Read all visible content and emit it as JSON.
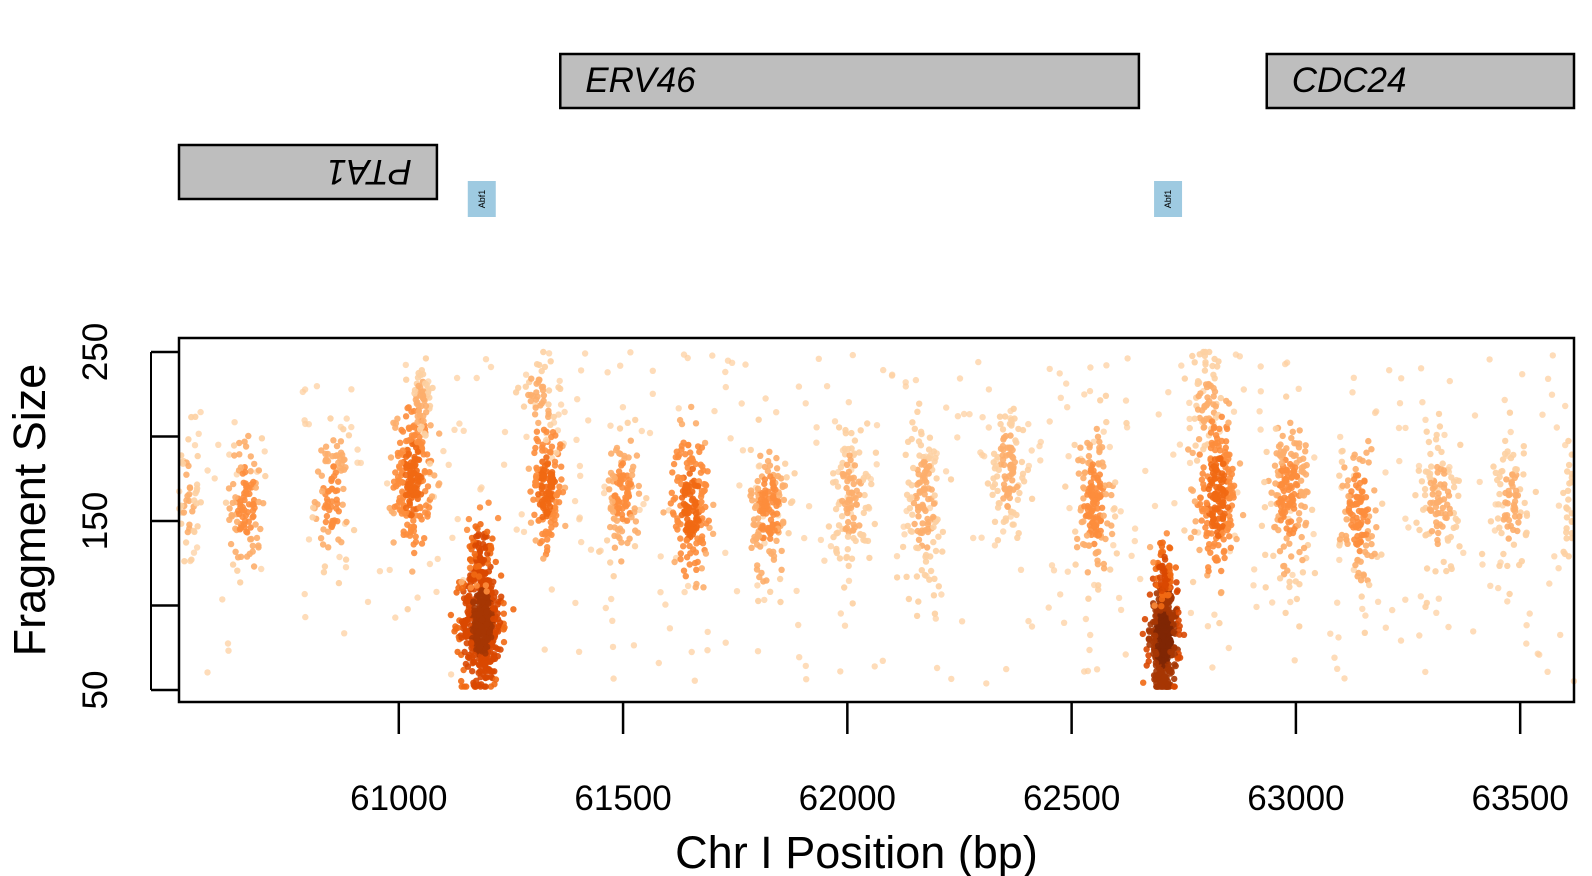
{
  "colors": {
    "gene_fill": "#bebebe",
    "motif_fill": "#9ecae1",
    "points_palette": [
      "#fdd0a2",
      "#fdae6b",
      "#fd8d3c",
      "#f16913",
      "#d94801",
      "#a63603",
      "#7f2704"
    ]
  },
  "chart_data": {
    "type": "scatter",
    "xlabel": "Chr I Position (bp)",
    "ylabel": "Fragment Size",
    "xlim": [
      60510,
      63620
    ],
    "ylim": [
      50,
      250
    ],
    "x_ticks": [
      61000,
      61500,
      62000,
      62500,
      63000,
      63500
    ],
    "x_tick_labels": [
      "61000",
      "61500",
      "62000",
      "62500",
      "63000",
      "63500"
    ],
    "y_ticks": [
      50,
      150,
      250
    ],
    "y_tick_labels": [
      "50",
      "150",
      "250"
    ],
    "grid": false,
    "genes": [
      {
        "name": "ERV46",
        "start": 61360,
        "end": 62650,
        "strand": "+"
      },
      {
        "name": "CDC24",
        "start": 62935,
        "end": 63620,
        "strand": "+"
      },
      {
        "name": "PTA1",
        "start": 60510,
        "end": 61085,
        "strand": "-"
      }
    ],
    "motifs": [
      {
        "name": "Abf1",
        "position": 61185
      },
      {
        "name": "Abf1",
        "position": 62715
      }
    ],
    "point_clusters": [
      {
        "x": 60530,
        "y": 165,
        "n": 40,
        "sx": 12,
        "sy": 20,
        "level": 1
      },
      {
        "x": 60660,
        "y": 160,
        "n": 100,
        "sx": 18,
        "sy": 20,
        "level": 2
      },
      {
        "x": 60850,
        "y": 165,
        "n": 90,
        "sx": 18,
        "sy": 18,
        "level": 2
      },
      {
        "x": 61030,
        "y": 175,
        "n": 220,
        "sx": 20,
        "sy": 20,
        "level": 3
      },
      {
        "x": 61050,
        "y": 220,
        "n": 50,
        "sx": 14,
        "sy": 12,
        "level": 1
      },
      {
        "x": 61185,
        "y": 90,
        "n": 520,
        "sx": 22,
        "sy": 18,
        "level": 5
      },
      {
        "x": 61185,
        "y": 135,
        "n": 60,
        "sx": 14,
        "sy": 10,
        "level": 4
      },
      {
        "x": 61330,
        "y": 170,
        "n": 160,
        "sx": 18,
        "sy": 18,
        "level": 3
      },
      {
        "x": 61310,
        "y": 225,
        "n": 40,
        "sx": 20,
        "sy": 12,
        "level": 1
      },
      {
        "x": 61500,
        "y": 165,
        "n": 110,
        "sx": 18,
        "sy": 18,
        "level": 2
      },
      {
        "x": 61650,
        "y": 160,
        "n": 180,
        "sx": 20,
        "sy": 20,
        "level": 3
      },
      {
        "x": 61825,
        "y": 155,
        "n": 150,
        "sx": 20,
        "sy": 20,
        "level": 2
      },
      {
        "x": 62010,
        "y": 165,
        "n": 110,
        "sx": 22,
        "sy": 22,
        "level": 1
      },
      {
        "x": 62170,
        "y": 160,
        "n": 130,
        "sx": 22,
        "sy": 25,
        "level": 1
      },
      {
        "x": 62360,
        "y": 180,
        "n": 100,
        "sx": 20,
        "sy": 20,
        "level": 1
      },
      {
        "x": 62550,
        "y": 160,
        "n": 150,
        "sx": 20,
        "sy": 22,
        "level": 2
      },
      {
        "x": 62705,
        "y": 80,
        "n": 460,
        "sx": 15,
        "sy": 15,
        "level": 6
      },
      {
        "x": 62705,
        "y": 118,
        "n": 60,
        "sx": 10,
        "sy": 10,
        "level": 4
      },
      {
        "x": 62800,
        "y": 220,
        "n": 60,
        "sx": 18,
        "sy": 15,
        "level": 1
      },
      {
        "x": 62825,
        "y": 165,
        "n": 230,
        "sx": 22,
        "sy": 22,
        "level": 3
      },
      {
        "x": 62985,
        "y": 165,
        "n": 170,
        "sx": 22,
        "sy": 22,
        "level": 2
      },
      {
        "x": 63140,
        "y": 155,
        "n": 120,
        "sx": 20,
        "sy": 22,
        "level": 2
      },
      {
        "x": 63320,
        "y": 160,
        "n": 100,
        "sx": 22,
        "sy": 22,
        "level": 1
      },
      {
        "x": 63480,
        "y": 160,
        "n": 80,
        "sx": 18,
        "sy": 20,
        "level": 1
      },
      {
        "x": 63610,
        "y": 160,
        "n": 25,
        "sx": 8,
        "sy": 18,
        "level": 0
      }
    ],
    "background_points": 450
  }
}
